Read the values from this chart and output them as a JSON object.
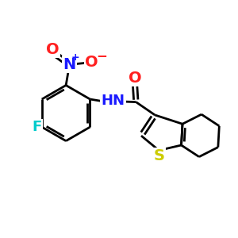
{
  "bg": "#ffffff",
  "col": {
    "bond": "#000000",
    "N": "#1a1aff",
    "O": "#ff2020",
    "F": "#00cccc",
    "S": "#cccc00"
  },
  "lw": 2.0,
  "fs": 12
}
